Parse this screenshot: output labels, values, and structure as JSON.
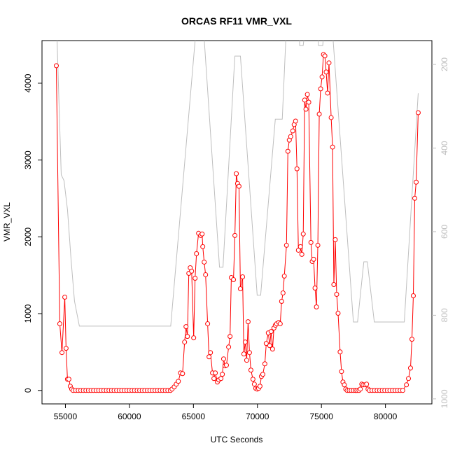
{
  "chart_data": {
    "type": "line",
    "title": "ORCAS RF11 VMR_VXL",
    "xlabel": "UTC Seconds",
    "ylabel": "VMR_VXL",
    "xlim": [
      53170,
      83630
    ],
    "ylim": [
      -175,
      4555
    ],
    "y2lim": [
      1012,
      143
    ],
    "xticks": [
      55000,
      60000,
      65000,
      70000,
      75000,
      80000
    ],
    "yticks": [
      0,
      1000,
      2000,
      3000,
      4000
    ],
    "y2ticks": [
      200,
      400,
      600,
      800,
      1000
    ],
    "series": [
      {
        "color": "#bebebe",
        "axis": "y2",
        "x": [
          54346,
          54673,
          54891,
          55163,
          55436,
          55708,
          56089,
          63225,
          65131,
          65349,
          65785,
          67038,
          67310,
          68236,
          68672,
          69980,
          70252,
          71396,
          71940,
          72213,
          72430,
          73248,
          73302,
          73575,
          73738,
          74664,
          74773,
          75100,
          75208,
          75807,
          75916,
          77496,
          77822,
          78312,
          78585,
          79130,
          81472,
          82561
        ],
        "values": [
          140,
          464,
          478,
          548,
          665,
          766,
          826,
          826,
          143,
          113,
          113,
          685,
          685,
          180,
          180,
          752,
          752,
          331,
          331,
          143,
          113,
          113,
          155,
          155,
          113,
          113,
          155,
          155,
          113,
          113,
          143,
          816,
          816,
          672,
          672,
          816,
          816,
          269
        ]
      },
      {
        "color": "#ff0000",
        "markers": true,
        "x": [
          54290,
          54560,
          54730,
          54950,
          55050,
          55160,
          55270,
          55380,
          55490,
          55600,
          55800,
          56000,
          56200,
          56400,
          56600,
          56800,
          57000,
          57200,
          57400,
          57600,
          57800,
          58000,
          58200,
          58400,
          58600,
          58800,
          59000,
          59200,
          59400,
          59600,
          59800,
          60000,
          60200,
          60400,
          60600,
          60800,
          61000,
          61200,
          61400,
          61600,
          61800,
          62000,
          62200,
          62400,
          62600,
          62800,
          63000,
          63200,
          63330,
          63500,
          63660,
          63820,
          63990,
          64150,
          64310,
          64420,
          64530,
          64640,
          64750,
          64860,
          65020,
          65130,
          65240,
          65400,
          65570,
          65680,
          65730,
          65840,
          65950,
          66110,
          66220,
          66330,
          66490,
          66600,
          66710,
          66870,
          66980,
          67150,
          67260,
          67360,
          67470,
          67580,
          67750,
          67860,
          67960,
          68130,
          68240,
          68350,
          68450,
          68560,
          68670,
          68840,
          68940,
          69050,
          69160,
          69270,
          69380,
          69490,
          69650,
          69760,
          69870,
          69980,
          70090,
          70200,
          70310,
          70420,
          70580,
          70690,
          70850,
          70960,
          71070,
          71180,
          71290,
          71400,
          71500,
          71670,
          71780,
          71890,
          72000,
          72100,
          72270,
          72380,
          72490,
          72600,
          72760,
          72870,
          72980,
          73090,
          73200,
          73360,
          73470,
          73580,
          73690,
          73790,
          73900,
          74010,
          74180,
          74280,
          74390,
          74500,
          74610,
          74720,
          74830,
          74940,
          75050,
          75160,
          75270,
          75370,
          75480,
          75590,
          75760,
          75870,
          75970,
          76080,
          76190,
          76300,
          76460,
          76570,
          76680,
          76790,
          76900,
          77010,
          77170,
          77330,
          77500,
          77660,
          77770,
          77930,
          78040,
          78150,
          78260,
          78420,
          78530,
          78640,
          78750,
          78950,
          79150,
          79350,
          79550,
          79750,
          79950,
          80150,
          80350,
          80550,
          80750,
          80950,
          81150,
          81350,
          81640,
          81800,
          81960,
          82070,
          82180,
          82290,
          82400,
          82560
        ],
        "values": [
          4228,
          868,
          493,
          1215,
          548,
          146,
          146,
          55,
          18,
          0,
          0,
          0,
          0,
          0,
          0,
          0,
          0,
          0,
          0,
          0,
          0,
          0,
          0,
          0,
          0,
          0,
          0,
          0,
          0,
          0,
          0,
          0,
          0,
          0,
          0,
          0,
          0,
          0,
          0,
          0,
          0,
          0,
          0,
          0,
          0,
          0,
          0,
          0,
          18,
          46,
          82,
          119,
          228,
          219,
          630,
          831,
          703,
          1525,
          1598,
          1553,
          685,
          1461,
          1781,
          2046,
          2018,
          2037,
          1872,
          1671,
          1507,
          868,
          438,
          493,
          228,
          155,
          228,
          110,
          137,
          155,
          210,
          411,
          320,
          329,
          566,
          703,
          1470,
          1443,
          2018,
          2822,
          2694,
          2658,
          1324,
          1479,
          475,
          630,
          393,
          895,
          493,
          265,
          146,
          82,
          27,
          18,
          27,
          55,
          183,
          210,
          347,
          612,
          749,
          584,
          767,
          539,
          813,
          849,
          868,
          886,
          868,
          1160,
          1269,
          1489,
          1890,
          3114,
          3260,
          3306,
          3379,
          3461,
          3507,
          2886,
          1826,
          1872,
          1772,
          2037,
          3781,
          3662,
          3854,
          3753,
          1927,
          1680,
          1708,
          1333,
          1087,
          1890,
          3598,
          3927,
          4082,
          4374,
          4356,
          4146,
          3872,
          4265,
          3553,
          3169,
          1379,
          1963,
          1251,
          1005,
          502,
          247,
          110,
          73,
          18,
          0,
          0,
          0,
          0,
          0,
          0,
          0,
          18,
          82,
          73,
          73,
          82,
          18,
          0,
          0,
          0,
          0,
          0,
          0,
          0,
          0,
          0,
          0,
          0,
          0,
          0,
          0,
          73,
          155,
          292,
          667,
          1233,
          2502,
          2712,
          3616
        ]
      }
    ]
  }
}
